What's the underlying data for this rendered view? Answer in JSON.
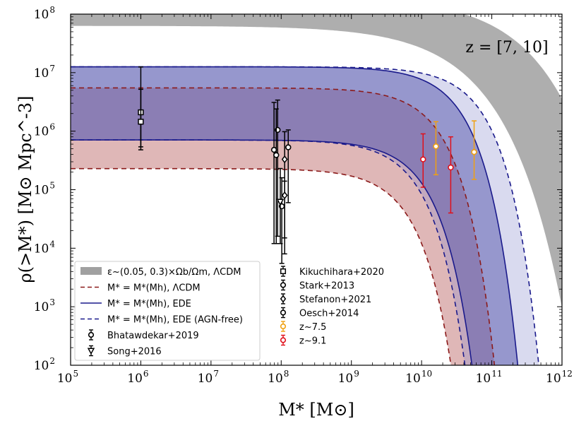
{
  "chart_data": {
    "type": "line",
    "annotation": "z = [7, 10]",
    "xlabel": "M* [M⊙]",
    "ylabel": "ρ(>M*) [M⊙ Mpc^-3]",
    "xscale": "log",
    "yscale": "log",
    "xlim": [
      100000,
      1000000000000
    ],
    "ylim": [
      100,
      100000000
    ],
    "x_ticks": [
      {
        "value": 100000,
        "base": "10",
        "exp": "5"
      },
      {
        "value": 1000000,
        "base": "10",
        "exp": "6"
      },
      {
        "value": 10000000,
        "base": "10",
        "exp": "7"
      },
      {
        "value": 100000000,
        "base": "10",
        "exp": "8"
      },
      {
        "value": 1000000000,
        "base": "10",
        "exp": "9"
      },
      {
        "value": 10000000000,
        "base": "10",
        "exp": "10"
      },
      {
        "value": 100000000000,
        "base": "10",
        "exp": "11"
      },
      {
        "value": 1000000000000,
        "base": "10",
        "exp": "12"
      }
    ],
    "y_ticks": [
      {
        "value": 100,
        "base": "10",
        "exp": "2"
      },
      {
        "value": 1000,
        "base": "10",
        "exp": "3"
      },
      {
        "value": 10000,
        "base": "10",
        "exp": "4"
      },
      {
        "value": 100000,
        "base": "10",
        "exp": "5"
      },
      {
        "value": 1000000,
        "base": "10",
        "exp": "6"
      },
      {
        "value": 10000000,
        "base": "10",
        "exp": "7"
      },
      {
        "value": 100000000,
        "base": "10",
        "exp": "8"
      }
    ],
    "bands": [
      {
        "name": "ε~(0.05,0.3)×Ωb/Ωm, ΛCDM",
        "color": "#a0a0a0",
        "opacity": 0.85,
        "lower": {
          "rho0_log": 7.8,
          "mc_log": 10.1,
          "beta": 0.55
        },
        "upper": {
          "rho0_log": 8.3,
          "mc_log": 10.9,
          "beta": 0.55
        }
      },
      {
        "name": "ΛCDM",
        "color": "#c07070",
        "opacity": 0.5,
        "lower": {
          "rho0_log": 5.36,
          "mc_log": 9.53,
          "beta": 1.0
        },
        "upper": {
          "rho0_log": 6.74,
          "mc_log": 10.0,
          "beta": 1.0
        }
      },
      {
        "name": "EDE",
        "color": "#3a3a9c",
        "opacity": 0.5,
        "lower": {
          "rho0_log": 5.85,
          "mc_log": 9.77,
          "beta": 1.0
        },
        "upper": {
          "rho0_log": 7.1,
          "mc_log": 10.3,
          "beta": 1.0
        }
      },
      {
        "name": "EDE (AGN-free)",
        "color": "#8a8ccc",
        "opacity": 0.32,
        "lower": {
          "rho0_log": 5.85,
          "mc_log": 9.67,
          "beta": 1.0
        },
        "upper": {
          "rho0_log": 7.1,
          "mc_log": 10.6,
          "beta": 1.0
        }
      }
    ],
    "lines": [
      {
        "name": "ΛCDM lower",
        "color": "#8b1a1a",
        "dash": "7,5",
        "rho0_log": 5.36,
        "mc_log": 9.53,
        "beta": 1.0
      },
      {
        "name": "ΛCDM upper",
        "color": "#8b1a1a",
        "dash": "7,5",
        "rho0_log": 6.74,
        "mc_log": 10.0,
        "beta": 1.0
      },
      {
        "name": "EDE lower",
        "color": "#1a1a8b",
        "dash": "",
        "rho0_log": 5.85,
        "mc_log": 9.77,
        "beta": 1.0
      },
      {
        "name": "EDE upper",
        "color": "#1a1a8b",
        "dash": "",
        "rho0_log": 7.1,
        "mc_log": 10.3,
        "beta": 1.0
      },
      {
        "name": "EDE AGN-free lower",
        "color": "#1a1a8b",
        "dash": "7,5",
        "rho0_log": 5.85,
        "mc_log": 9.67,
        "beta": 1.0
      },
      {
        "name": "EDE AGN-free upper",
        "color": "#1a1a8b",
        "dash": "7,5",
        "rho0_log": 7.1,
        "mc_log": 10.6,
        "beta": 1.0
      }
    ],
    "observations": [
      {
        "name": "Kikuchihara+2020",
        "marker": "square",
        "color": "#000000",
        "points": [
          {
            "x": 1000000,
            "y": 2100000,
            "ylo": 540000,
            "yhi": 12500000
          },
          {
            "x": 1000000,
            "y": 1450000,
            "ylo": 480000,
            "yhi": 5200000
          }
        ]
      },
      {
        "name": "Bhatawdekar+2019",
        "marker": "circle",
        "color": "#000000",
        "points": [
          {
            "x": 79000000,
            "y": 480000,
            "ylo": 12000,
            "yhi": 3100000
          },
          {
            "x": 89000000,
            "y": 1050000,
            "ylo": 16000,
            "yhi": 3400000
          },
          {
            "x": 126000000,
            "y": 530000,
            "ylo": 60000,
            "yhi": 1050000
          }
        ]
      },
      {
        "name": "Stark+2013",
        "marker": "circle",
        "color": "#000000",
        "points": [
          {
            "x": 85000000,
            "y": 390000,
            "ylo": 12000,
            "yhi": 2400000
          }
        ]
      },
      {
        "name": "Stefanon+2021",
        "marker": "diamond",
        "color": "#000000",
        "points": [
          {
            "x": 112000000,
            "y": 330000,
            "ylo": 15000,
            "yhi": 980000
          },
          {
            "x": 112000000,
            "y": 80000,
            "ylo": 8000,
            "yhi": 140000
          }
        ]
      },
      {
        "name": "Oesch+2014",
        "marker": "circle",
        "color": "#000000",
        "points": [
          {
            "x": 102000000,
            "y": 52000,
            "ylo": 5500,
            "yhi": 160000
          }
        ]
      },
      {
        "name": "Song+2016",
        "marker": "triangle-down",
        "color": "#000000",
        "points": [
          {
            "x": 97000000,
            "y": 62000,
            "ylo": 12000,
            "yhi": 230000
          }
        ]
      },
      {
        "name": "z~7.5",
        "marker": "circle-open",
        "color": "#f0a010",
        "points": [
          {
            "x": 16000000000,
            "y": 550000,
            "ylo": 180000,
            "yhi": 1450000
          },
          {
            "x": 56000000000,
            "y": 440000,
            "ylo": 150000,
            "yhi": 1500000
          }
        ]
      },
      {
        "name": "z~9.1",
        "marker": "circle-open",
        "color": "#e0101a",
        "points": [
          {
            "x": 10500000000,
            "y": 330000,
            "ylo": 110000,
            "yhi": 900000
          },
          {
            "x": 26000000000,
            "y": 240000,
            "ylo": 40000,
            "yhi": 800000
          }
        ]
      }
    ],
    "legend_left": [
      {
        "label": "ε~(0.05, 0.3)×Ωb/Ωm, ΛCDM",
        "kind": "patch",
        "color": "#a0a0a0"
      },
      {
        "label": "M* = M*(Mh), ΛCDM",
        "kind": "dashed",
        "color": "#8b1a1a"
      },
      {
        "label": "M* = M*(Mh), EDE",
        "kind": "solid",
        "color": "#1a1a8b"
      },
      {
        "label": "M* = M*(Mh), EDE (AGN-free)",
        "kind": "dashed",
        "color": "#1a1a8b"
      },
      {
        "label": "Bhatawdekar+2019",
        "kind": "circle",
        "color": "#000000"
      },
      {
        "label": "Song+2016",
        "kind": "triangle-down",
        "color": "#000000"
      }
    ],
    "legend_right": [
      {
        "label": "Kikuchihara+2020",
        "kind": "square",
        "color": "#000000"
      },
      {
        "label": "Stark+2013",
        "kind": "circle",
        "color": "#000000"
      },
      {
        "label": "Stefanon+2021",
        "kind": "diamond",
        "color": "#000000"
      },
      {
        "label": "Oesch+2014",
        "kind": "circle",
        "color": "#000000"
      },
      {
        "label": "z~7.5",
        "kind": "circle-open",
        "color": "#f0a010"
      },
      {
        "label": "z~9.1",
        "kind": "circle-open",
        "color": "#e0101a"
      }
    ]
  }
}
